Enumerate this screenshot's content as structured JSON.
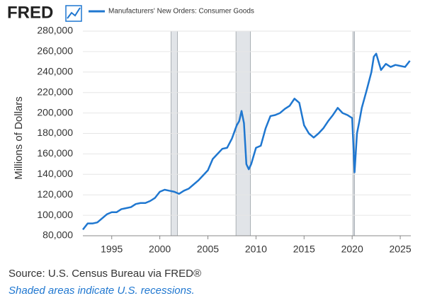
{
  "chart_data": {
    "type": "line",
    "logo": "FRED",
    "y_label": "Millions of Dollars",
    "source": "Source: U.S. Census Bureau via FRED®",
    "note": "Shaded areas indicate U.S. recessions.",
    "xlim": [
      1992,
      2026.1
    ],
    "ylim": [
      80000,
      280000
    ],
    "xticks": [
      1995,
      2000,
      2005,
      2010,
      2015,
      2020,
      2025
    ],
    "yticks": [
      {
        "value": 80000,
        "label": "80,000"
      },
      {
        "value": 100000,
        "label": "100,000"
      },
      {
        "value": 120000,
        "label": "120,000"
      },
      {
        "value": 140000,
        "label": "140,000"
      },
      {
        "value": 160000,
        "label": "160,000"
      },
      {
        "value": 180000,
        "label": "180,000"
      },
      {
        "value": 200000,
        "label": "200,000"
      },
      {
        "value": 220000,
        "label": "220,000"
      },
      {
        "value": 240000,
        "label": "240,000"
      },
      {
        "value": 260000,
        "label": "260,000"
      },
      {
        "value": 280000,
        "label": "280,000"
      }
    ],
    "grid": true,
    "recessions": [
      [
        2001.17,
        2001.83
      ],
      [
        2007.92,
        2009.42
      ],
      [
        2020.08,
        2020.25
      ]
    ],
    "x": [
      1992.0,
      1992.5,
      1993.0,
      1993.5,
      1994.0,
      1994.5,
      1995.0,
      1995.5,
      1996.0,
      1996.5,
      1997.0,
      1997.5,
      1998.0,
      1998.5,
      1999.0,
      1999.5,
      2000.0,
      2000.5,
      2001.0,
      2001.5,
      2002.0,
      2002.5,
      2003.0,
      2003.5,
      2004.0,
      2004.5,
      2005.0,
      2005.5,
      2006.0,
      2006.5,
      2007.0,
      2007.5,
      2008.0,
      2008.25,
      2008.5,
      2008.75,
      2009.0,
      2009.25,
      2009.5,
      2010.0,
      2010.5,
      2011.0,
      2011.5,
      2012.0,
      2012.5,
      2013.0,
      2013.5,
      2014.0,
      2014.5,
      2015.0,
      2015.5,
      2016.0,
      2016.5,
      2017.0,
      2017.5,
      2018.0,
      2018.5,
      2019.0,
      2019.5,
      2020.0,
      2020.25,
      2020.5,
      2020.75,
      2021.0,
      2021.5,
      2022.0,
      2022.25,
      2022.5,
      2022.75,
      2023.0,
      2023.5,
      2024.0,
      2024.5,
      2025.0,
      2025.5,
      2026.0
    ],
    "series": [
      {
        "name": "Manufacturers' New Orders: Consumer Goods",
        "color": "#1f77d0",
        "values": [
          86000,
          92000,
          92000,
          93000,
          97000,
          101000,
          103000,
          103000,
          106000,
          107000,
          108000,
          111000,
          112000,
          112000,
          114000,
          117000,
          123000,
          125000,
          124000,
          123000,
          121000,
          124000,
          126000,
          130000,
          134000,
          139000,
          144000,
          155000,
          160000,
          165000,
          166000,
          175000,
          188000,
          192000,
          202000,
          190000,
          150000,
          145000,
          150000,
          166000,
          168000,
          185000,
          197000,
          198000,
          200000,
          204000,
          207000,
          214000,
          210000,
          188000,
          180000,
          176000,
          180000,
          185000,
          192000,
          198000,
          205000,
          200000,
          198000,
          195000,
          142000,
          180000,
          192000,
          205000,
          222000,
          240000,
          255000,
          258000,
          250000,
          242000,
          248000,
          245000,
          247000,
          246000,
          245000,
          251000
        ]
      }
    ]
  }
}
